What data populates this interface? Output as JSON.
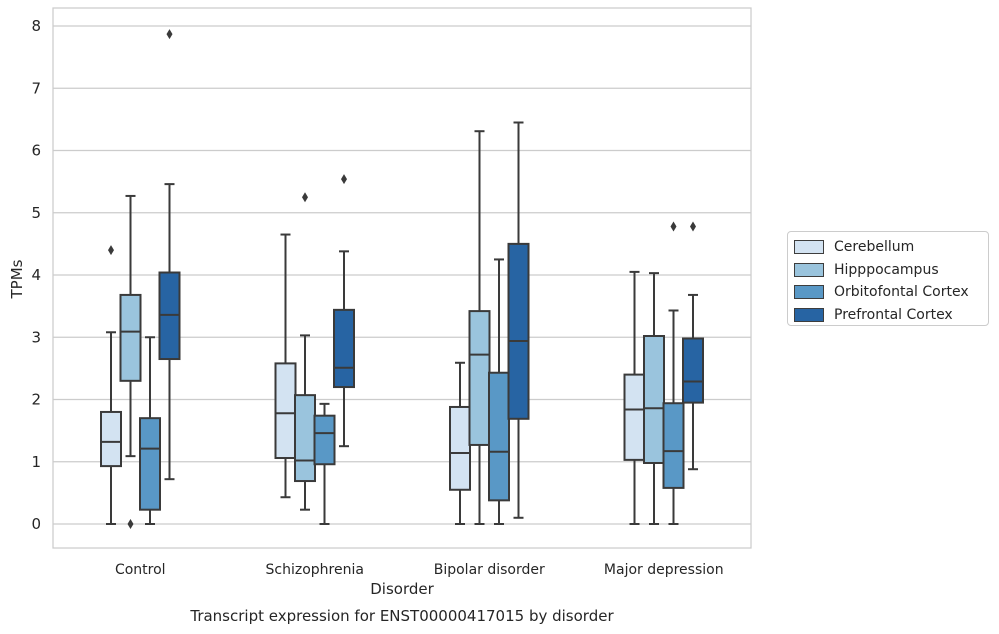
{
  "chart_data": {
    "type": "box",
    "title": "Transcript expression for ENST00000417015 by disorder",
    "xlabel": "Disorder",
    "ylabel": "TPMs",
    "ylim": [
      -0.38,
      8.3
    ],
    "yticks": [
      0,
      1,
      2,
      3,
      4,
      5,
      6,
      7,
      8
    ],
    "grid": true,
    "legend_position": "right",
    "categories": [
      "Control",
      "Schizophrenia",
      "Bipolar disorder",
      "Major depression"
    ],
    "series": [
      {
        "name": "Cerebellum",
        "color": "#d3e3f2",
        "boxes": [
          {
            "whislo": 0.0,
            "q1": 0.93,
            "median": 1.32,
            "q3": 1.8,
            "whishi": 3.08,
            "fliers": [
              4.4
            ]
          },
          {
            "whislo": 0.43,
            "q1": 1.06,
            "median": 1.78,
            "q3": 2.58,
            "whishi": 4.65,
            "fliers": []
          },
          {
            "whislo": 0.0,
            "q1": 0.55,
            "median": 1.14,
            "q3": 1.88,
            "whishi": 2.59,
            "fliers": []
          },
          {
            "whislo": 0.0,
            "q1": 1.03,
            "median": 1.84,
            "q3": 2.4,
            "whishi": 4.05,
            "fliers": []
          }
        ]
      },
      {
        "name": "Hipppocampus",
        "color": "#9ac4dd",
        "boxes": [
          {
            "whislo": 1.09,
            "q1": 2.3,
            "median": 3.09,
            "q3": 3.68,
            "whishi": 5.27,
            "fliers": [
              0.0
            ]
          },
          {
            "whislo": 0.23,
            "q1": 0.69,
            "median": 1.02,
            "q3": 2.07,
            "whishi": 3.03,
            "fliers": [
              5.25
            ]
          },
          {
            "whislo": 0.0,
            "q1": 1.27,
            "median": 2.72,
            "q3": 3.42,
            "whishi": 6.31,
            "fliers": []
          },
          {
            "whislo": 0.0,
            "q1": 0.98,
            "median": 1.86,
            "q3": 3.02,
            "whishi": 4.03,
            "fliers": []
          }
        ]
      },
      {
        "name": "Orbitofontal Cortex",
        "color": "#5998c6",
        "boxes": [
          {
            "whislo": 0.0,
            "q1": 0.23,
            "median": 1.21,
            "q3": 1.7,
            "whishi": 3.0,
            "fliers": []
          },
          {
            "whislo": 0.0,
            "q1": 0.96,
            "median": 1.46,
            "q3": 1.74,
            "whishi": 1.93,
            "fliers": []
          },
          {
            "whislo": 0.0,
            "q1": 0.38,
            "median": 1.16,
            "q3": 2.43,
            "whishi": 4.25,
            "fliers": []
          },
          {
            "whislo": 0.0,
            "q1": 0.58,
            "median": 1.17,
            "q3": 1.94,
            "whishi": 3.43,
            "fliers": [
              4.78
            ]
          }
        ]
      },
      {
        "name": "Prefrontal Cortex",
        "color": "#2764a3",
        "boxes": [
          {
            "whislo": 0.72,
            "q1": 2.65,
            "median": 3.36,
            "q3": 4.04,
            "whishi": 5.46,
            "fliers": [
              7.87
            ]
          },
          {
            "whislo": 1.25,
            "q1": 2.2,
            "median": 2.51,
            "q3": 3.44,
            "whishi": 4.38,
            "fliers": [
              5.54
            ]
          },
          {
            "whislo": 0.1,
            "q1": 1.69,
            "median": 2.94,
            "q3": 4.5,
            "whishi": 6.45,
            "fliers": []
          },
          {
            "whislo": 0.88,
            "q1": 1.95,
            "median": 2.29,
            "q3": 2.98,
            "whishi": 3.68,
            "fliers": [
              4.78
            ]
          }
        ]
      }
    ]
  }
}
